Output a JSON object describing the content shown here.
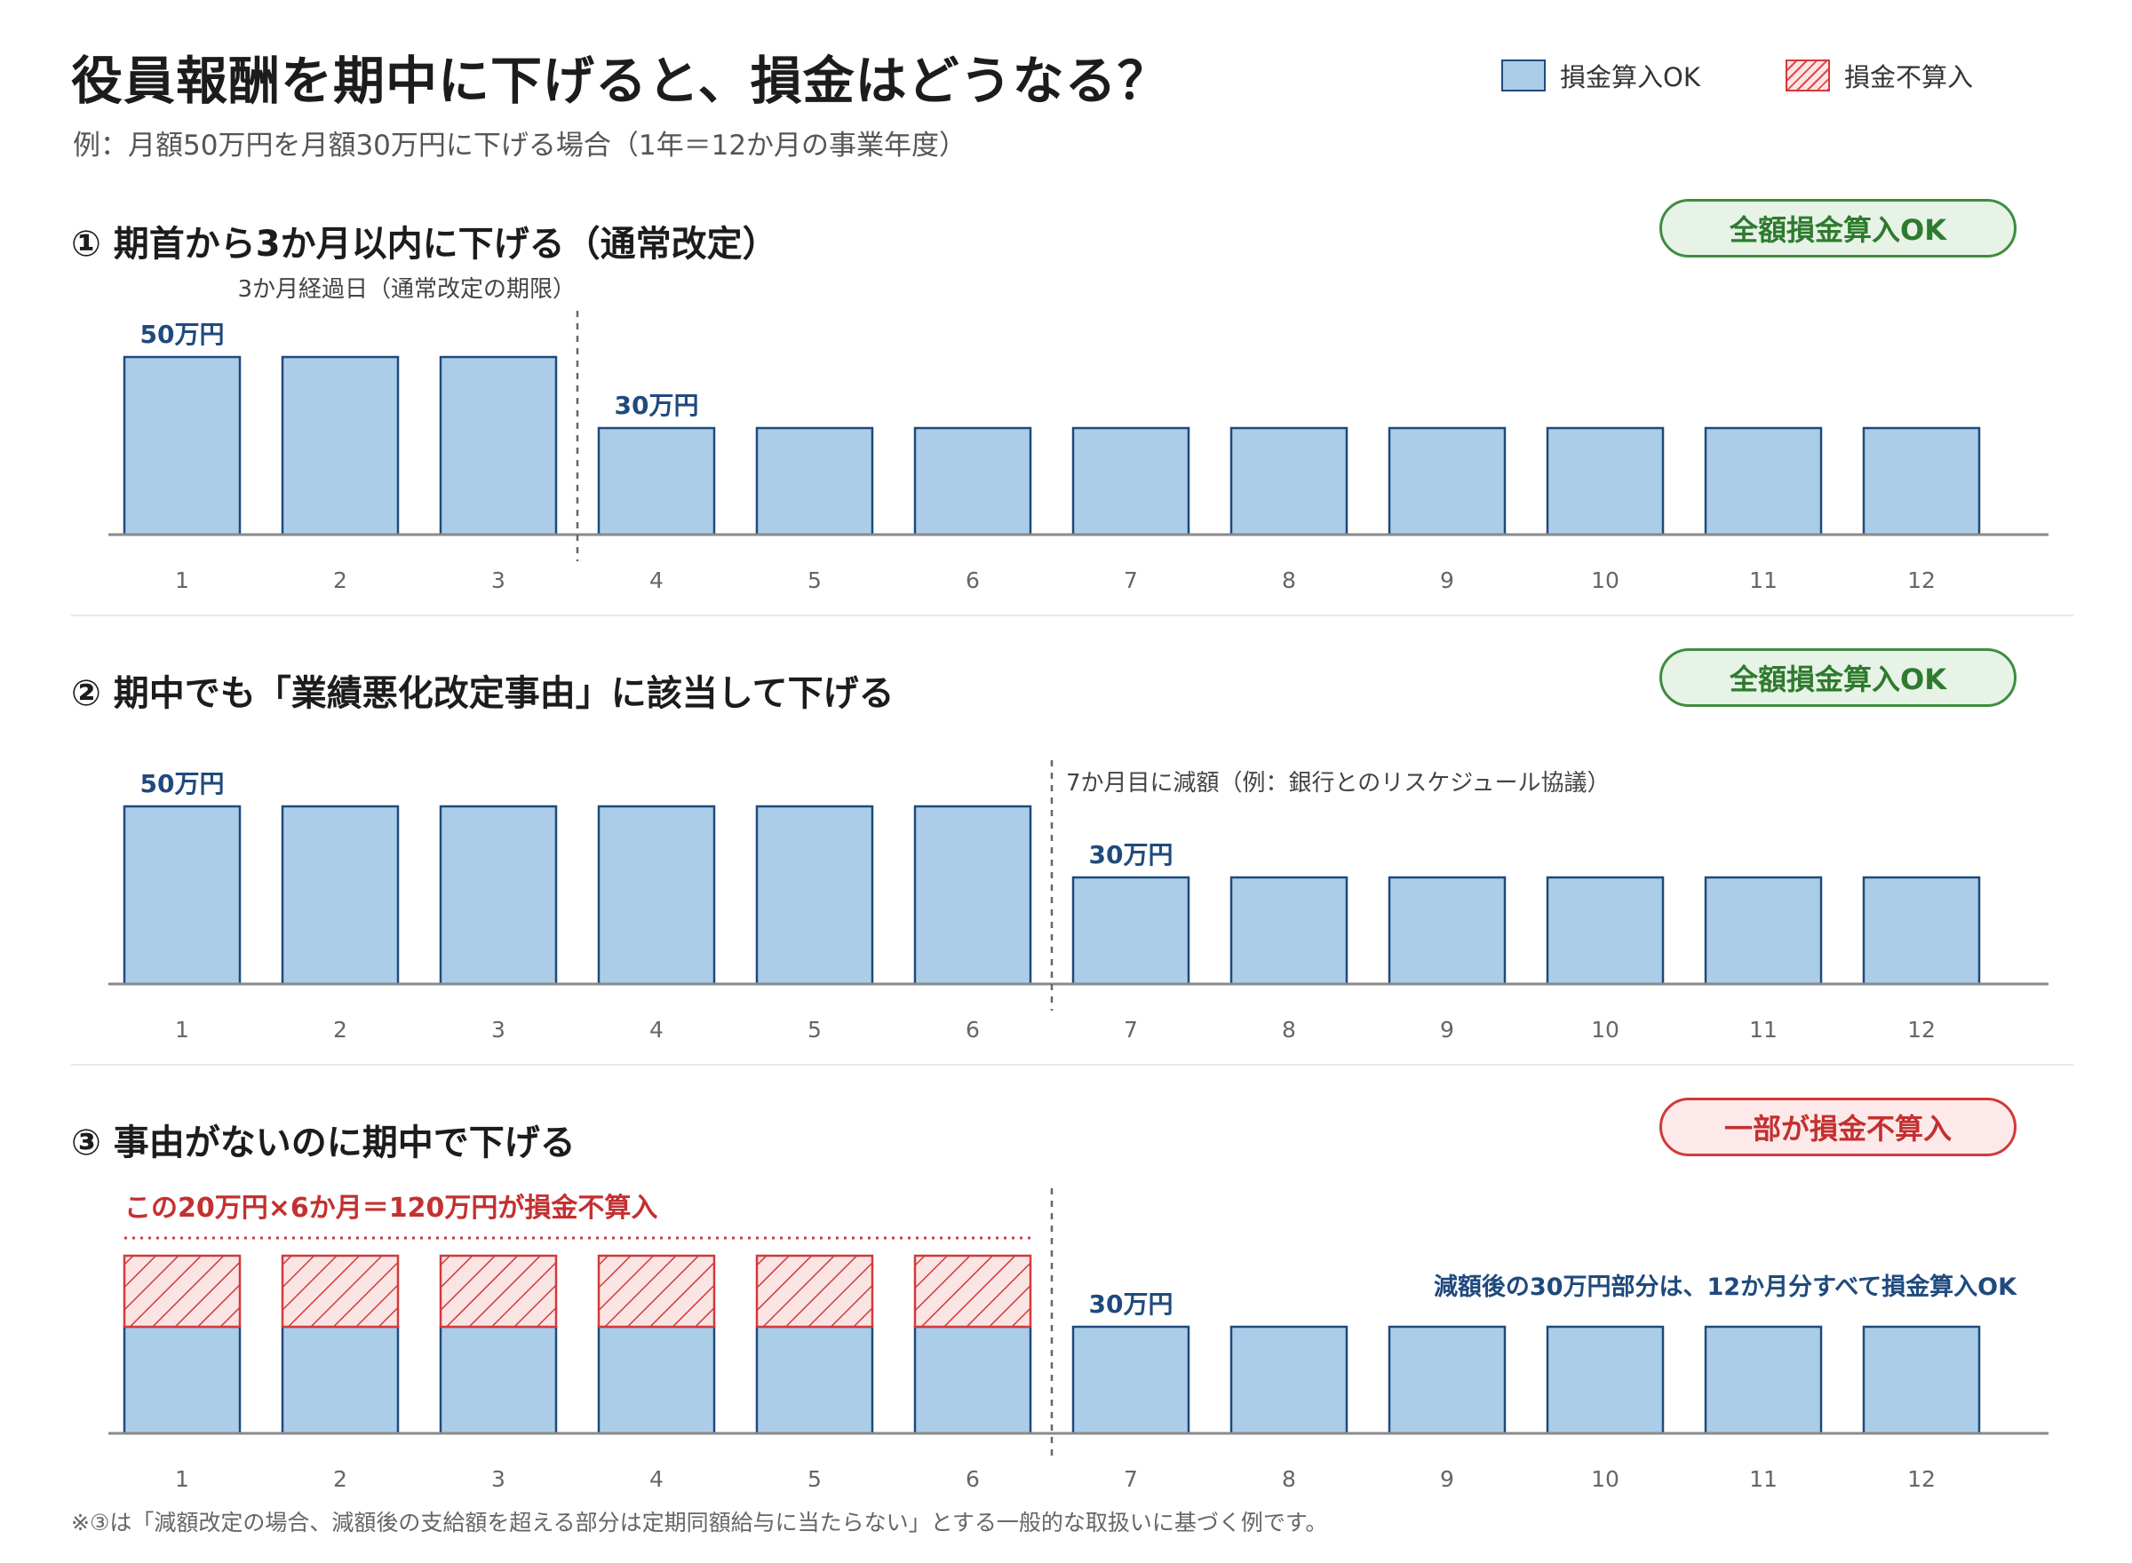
{
  "header": {
    "title": "役員報酬を期中に下げると、損金はどうなる？",
    "subtitle": "例：月額50万円を月額30万円に下げる場合（1年＝12か月の事業年度）"
  },
  "legend": [
    {
      "label": "損金算入OK",
      "kind": "ok"
    },
    {
      "label": "損金不算入",
      "kind": "ng"
    }
  ],
  "colors": {
    "bar_fill": "#abcde8",
    "bar_stroke": "#1f4a7d",
    "value_label": "#1f4a7d",
    "ng_red": "#d23a3a",
    "ok_green": "#2e7a2e",
    "axis": "#8a8a8a"
  },
  "sections": [
    {
      "title": "① 期首から3か月以内に下げる（通常改定）",
      "badge": {
        "label": "全額損金算入OK",
        "tone": "green"
      }
    },
    {
      "title": "② 期中でも「業績悪化改定事由」に該当して下げる",
      "badge": {
        "label": "全額損金算入OK",
        "tone": "green"
      }
    },
    {
      "title": "③ 事由がないのに期中で下げる",
      "badge": {
        "label": "一部が損金不算入",
        "tone": "red"
      }
    }
  ],
  "chart_data": [
    {
      "type": "bar",
      "categories": [
        "1",
        "2",
        "3",
        "4",
        "5",
        "6",
        "7",
        "8",
        "9",
        "10",
        "11",
        "12"
      ],
      "series": [
        {
          "name": "損金算入OK",
          "values": [
            50,
            50,
            50,
            30,
            30,
            30,
            30,
            30,
            30,
            30,
            30,
            30
          ]
        }
      ],
      "ylim": [
        0,
        50
      ],
      "reduction_after_month": 3,
      "marker_label": "3か月経過日（通常改定の期限）",
      "value_labels": [
        {
          "month": 1,
          "text": "50万円"
        },
        {
          "month": 4,
          "text": "30万円"
        }
      ],
      "nondeductible_values": [
        0,
        0,
        0,
        0,
        0,
        0,
        0,
        0,
        0,
        0,
        0,
        0
      ],
      "nondeductible_label": "",
      "note": ""
    },
    {
      "type": "bar",
      "categories": [
        "1",
        "2",
        "3",
        "4",
        "5",
        "6",
        "7",
        "8",
        "9",
        "10",
        "11",
        "12"
      ],
      "series": [
        {
          "name": "損金算入OK",
          "values": [
            50,
            50,
            50,
            50,
            50,
            50,
            30,
            30,
            30,
            30,
            30,
            30
          ]
        }
      ],
      "ylim": [
        0,
        50
      ],
      "reduction_after_month": 6,
      "marker_label": "7か月目に減額（例：銀行とのリスケジュール協議）",
      "value_labels": [
        {
          "month": 1,
          "text": "50万円"
        },
        {
          "month": 7,
          "text": "30万円"
        }
      ],
      "nondeductible_values": [
        0,
        0,
        0,
        0,
        0,
        0,
        0,
        0,
        0,
        0,
        0,
        0
      ],
      "nondeductible_label": "",
      "note": ""
    },
    {
      "type": "bar",
      "categories": [
        "1",
        "2",
        "3",
        "4",
        "5",
        "6",
        "7",
        "8",
        "9",
        "10",
        "11",
        "12"
      ],
      "series": [
        {
          "name": "損金算入OK",
          "values": [
            30,
            30,
            30,
            30,
            30,
            30,
            30,
            30,
            30,
            30,
            30,
            30
          ]
        },
        {
          "name": "損金不算入",
          "values": [
            20,
            20,
            20,
            20,
            20,
            20,
            0,
            0,
            0,
            0,
            0,
            0
          ]
        }
      ],
      "ylim": [
        0,
        50
      ],
      "reduction_after_month": 6,
      "marker_label": "",
      "value_labels": [
        {
          "month": 7,
          "text": "30万円"
        }
      ],
      "nondeductible_values": [
        20,
        20,
        20,
        20,
        20,
        20,
        0,
        0,
        0,
        0,
        0,
        0
      ],
      "nondeductible_label": "この20万円×6か月＝120万円が損金不算入",
      "note": "減額後の30万円部分は、12か月分すべて損金算入OK"
    }
  ],
  "footnote": "※③は「減額改定の場合、減額後の支給額を超える部分は定期同額給与に当たらない」とする一般的な取扱いに基づく例です。"
}
